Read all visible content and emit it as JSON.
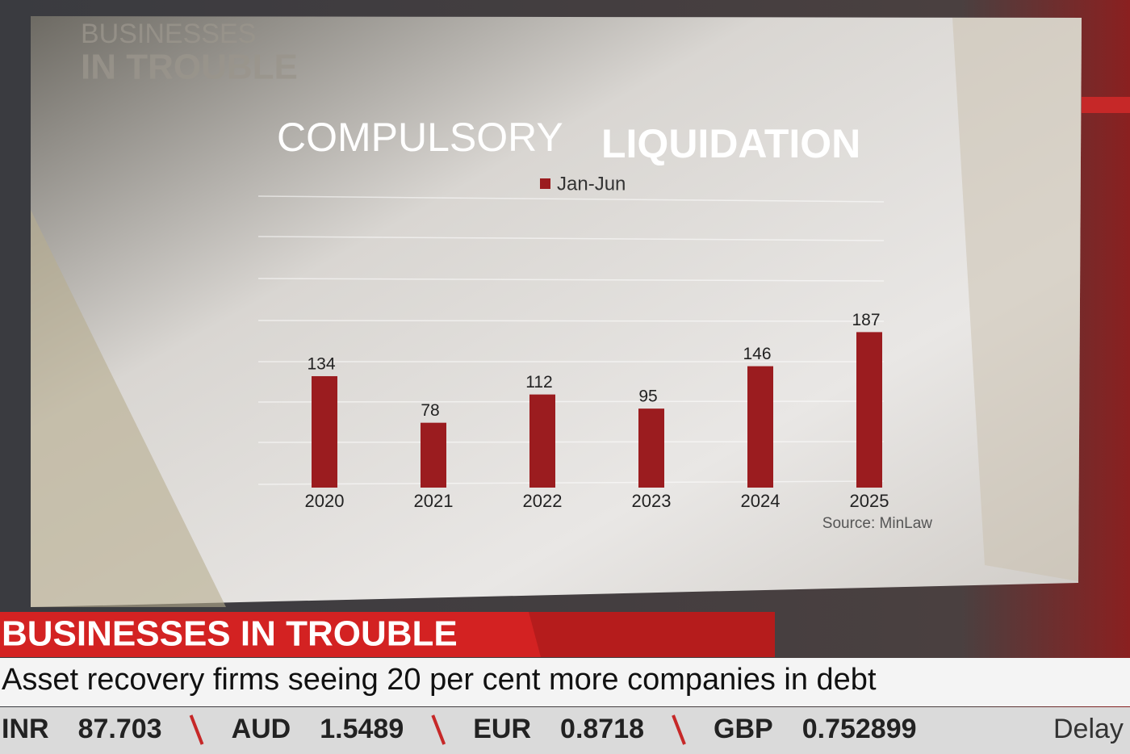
{
  "watermark": [
    "BUSINESSES",
    "IN TROUBLE"
  ],
  "chart_data": {
    "type": "bar",
    "title_parts": [
      "COMPULSORY",
      "LIQUIDATION"
    ],
    "categories": [
      "2020",
      "2021",
      "2022",
      "2023",
      "2024",
      "2025"
    ],
    "series": [
      {
        "name": "Jan-Jun",
        "color": "#9b1c1f",
        "values": [
          134,
          78,
          112,
          95,
          146,
          187
        ]
      }
    ],
    "ylim": [
      0,
      200
    ],
    "source": "Source: MinLaw"
  },
  "lower_third": {
    "banner": "BUSINESSES IN TROUBLE",
    "headline": "Asset recovery firms seeing 20 per cent more companies in debt",
    "ticker": [
      {
        "code": "INR",
        "rate": "87.703"
      },
      {
        "code": "AUD",
        "rate": "1.5489"
      },
      {
        "code": "EUR",
        "rate": "0.8718"
      },
      {
        "code": "GBP",
        "rate": "0.752899"
      }
    ],
    "ticker_tail": "Delay"
  }
}
